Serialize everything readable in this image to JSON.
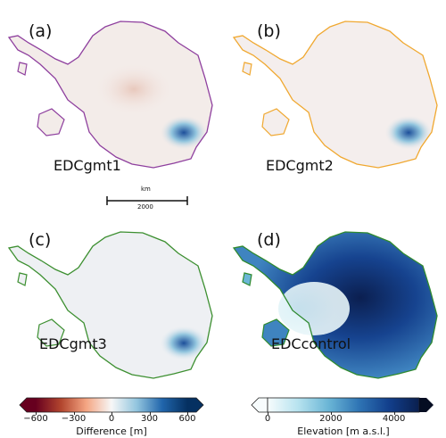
{
  "panels": [
    {
      "letter": "(a)",
      "run": "EDCgmt1",
      "outline_color": "#8e3f9e"
    },
    {
      "letter": "(b)",
      "run": "EDCgmt2",
      "outline_color": "#f0a830"
    },
    {
      "letter": "(c)",
      "run": "EDCgmt3",
      "outline_color": "#3c8f30"
    },
    {
      "letter": "(d)",
      "run": "EDCcontrol",
      "outline_color": "#2f8a2f"
    }
  ],
  "scalebar": {
    "unit": "km",
    "length": "2000"
  },
  "colorbars": {
    "difference": {
      "title": "Difference [m]",
      "ticks": [
        "−600",
        "−300",
        "0",
        "300",
        "600"
      ],
      "range": [
        -600,
        600
      ],
      "colors": [
        "#67001f",
        "#b2452e",
        "#f4a582",
        "#f7f7f7",
        "#92c5de",
        "#2166ac",
        "#053061"
      ]
    },
    "elevation": {
      "title": "Elevation [m a.s.l.]",
      "ticks": [
        "0",
        "2000",
        "4000"
      ],
      "range": [
        0,
        4800
      ],
      "colors": [
        "#f7fcfd",
        "#b7e3ef",
        "#6bb6d6",
        "#2f75b5",
        "#123f8c",
        "#0a1f4e"
      ]
    }
  }
}
